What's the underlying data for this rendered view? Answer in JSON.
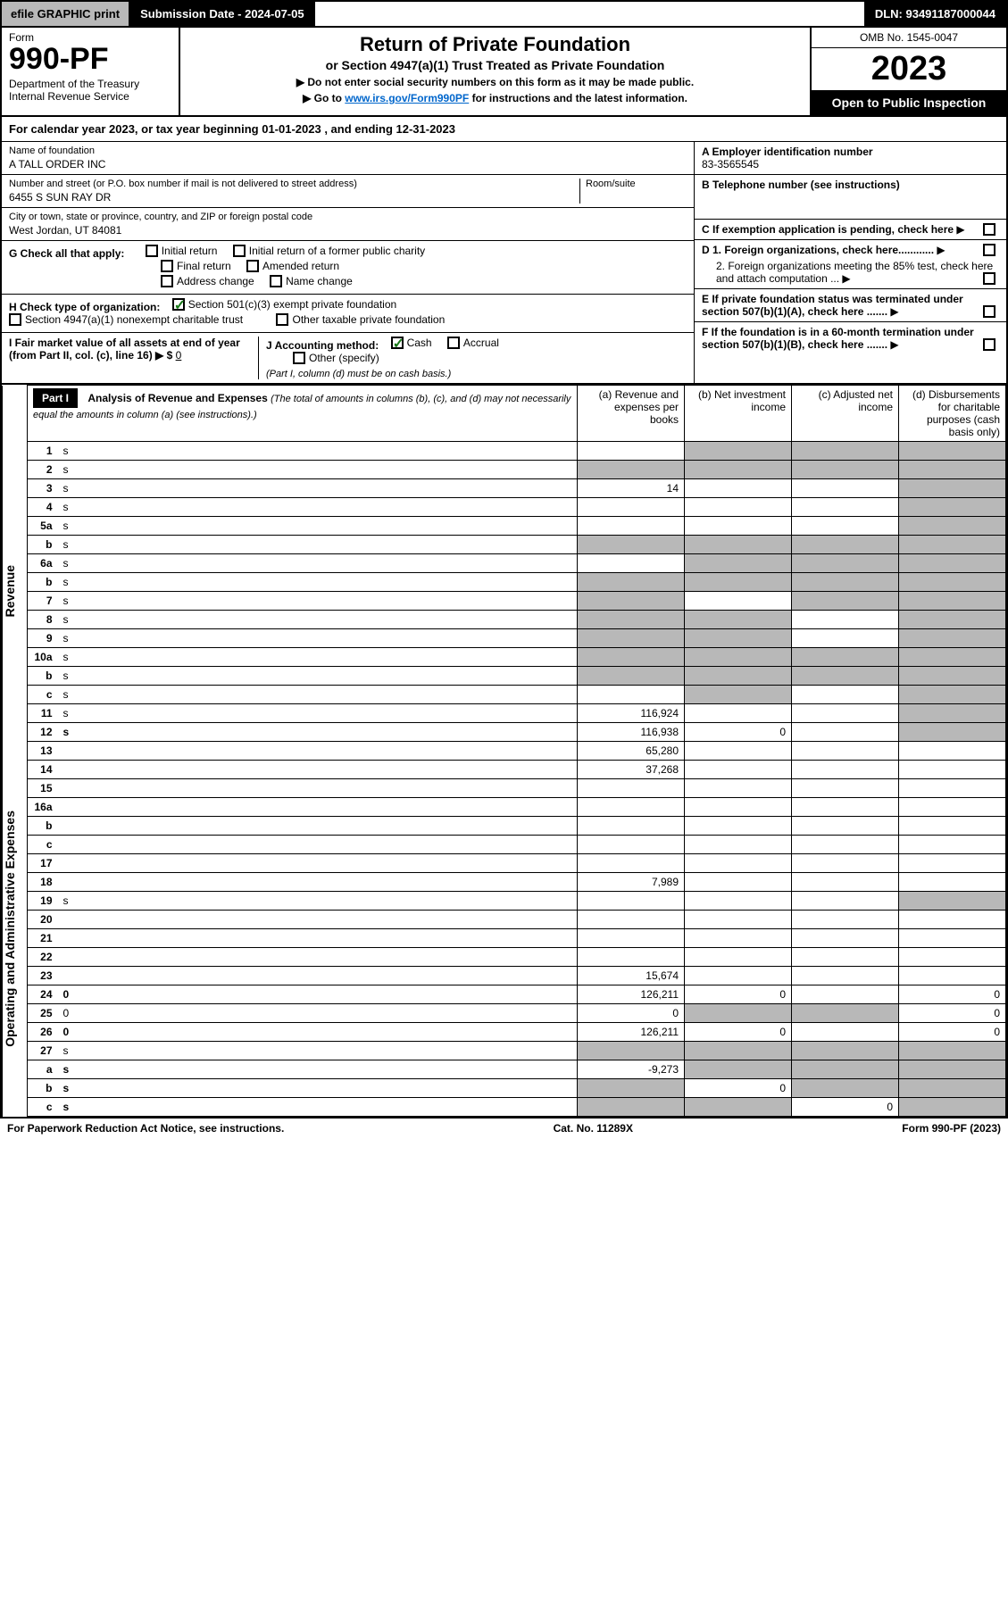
{
  "topbar": {
    "efile": "efile GRAPHIC print",
    "submission": "Submission Date - 2024-07-05",
    "dln": "DLN: 93491187000044"
  },
  "header": {
    "form_label": "Form",
    "form_number": "990-PF",
    "dept": "Department of the Treasury",
    "irs": "Internal Revenue Service",
    "title": "Return of Private Foundation",
    "subtitle": "or Section 4947(a)(1) Trust Treated as Private Foundation",
    "instr1": "▶ Do not enter social security numbers on this form as it may be made public.",
    "instr2_prefix": "▶ Go to ",
    "instr2_link": "www.irs.gov/Form990PF",
    "instr2_suffix": " for instructions and the latest information.",
    "omb": "OMB No. 1545-0047",
    "year": "2023",
    "open": "Open to Public Inspection"
  },
  "calyear": "For calendar year 2023, or tax year beginning 01-01-2023                          , and ending 12-31-2023",
  "info": {
    "name_label": "Name of foundation",
    "name": "A TALL ORDER INC",
    "addr_label": "Number and street (or P.O. box number if mail is not delivered to street address)",
    "addr": "6455 S SUN RAY DR",
    "room_label": "Room/suite",
    "city_label": "City or town, state or province, country, and ZIP or foreign postal code",
    "city": "West Jordan, UT  84081",
    "a_label": "A Employer identification number",
    "a_val": "83-3565545",
    "b_label": "B Telephone number (see instructions)",
    "c_label": "C If exemption application is pending, check here",
    "d1": "D 1. Foreign organizations, check here............",
    "d2": "2. Foreign organizations meeting the 85% test, check here and attach computation ...",
    "e": "E  If private foundation status was terminated under section 507(b)(1)(A), check here .......",
    "f": "F  If the foundation is in a 60-month termination under section 507(b)(1)(B), check here .......",
    "g": "G Check all that apply:",
    "g_opts": [
      "Initial return",
      "Initial return of a former public charity",
      "Final return",
      "Amended return",
      "Address change",
      "Name change"
    ],
    "h": "H Check type of organization:",
    "h1": "Section 501(c)(3) exempt private foundation",
    "h2": "Section 4947(a)(1) nonexempt charitable trust",
    "h3": "Other taxable private foundation",
    "i": "I Fair market value of all assets at end of year (from Part II, col. (c), line 16) ▶ $",
    "i_val": "0",
    "j": "J Accounting method:",
    "j_cash": "Cash",
    "j_accrual": "Accrual",
    "j_other": "Other (specify)",
    "j_note": "(Part I, column (d) must be on cash basis.)"
  },
  "part1": {
    "label": "Part I",
    "title": "Analysis of Revenue and Expenses",
    "title_note": "(The total of amounts in columns (b), (c), and (d) may not necessarily equal the amounts in column (a) (see instructions).)",
    "col_a": "(a) Revenue and expenses per books",
    "col_b": "(b) Net investment income",
    "col_c": "(c) Adjusted net income",
    "col_d": "(d) Disbursements for charitable purposes (cash basis only)"
  },
  "vlabels": {
    "revenue": "Revenue",
    "expenses": "Operating and Administrative Expenses"
  },
  "rows": [
    {
      "n": "1",
      "d": "s",
      "a": "",
      "b": "s",
      "c": "s"
    },
    {
      "n": "2",
      "d": "s",
      "a": "s",
      "b": "s",
      "c": "s"
    },
    {
      "n": "3",
      "d": "s",
      "a": "14",
      "b": "",
      "c": ""
    },
    {
      "n": "4",
      "d": "s",
      "a": "",
      "b": "",
      "c": ""
    },
    {
      "n": "5a",
      "d": "s",
      "a": "",
      "b": "",
      "c": ""
    },
    {
      "n": "b",
      "d": "s",
      "a": "s",
      "b": "s",
      "c": "s"
    },
    {
      "n": "6a",
      "d": "s",
      "a": "",
      "b": "s",
      "c": "s"
    },
    {
      "n": "b",
      "d": "s",
      "a": "s",
      "b": "s",
      "c": "s"
    },
    {
      "n": "7",
      "d": "s",
      "a": "s",
      "b": "",
      "c": "s"
    },
    {
      "n": "8",
      "d": "s",
      "a": "s",
      "b": "s",
      "c": ""
    },
    {
      "n": "9",
      "d": "s",
      "a": "s",
      "b": "s",
      "c": ""
    },
    {
      "n": "10a",
      "d": "s",
      "a": "s",
      "b": "s",
      "c": "s"
    },
    {
      "n": "b",
      "d": "s",
      "a": "s",
      "b": "s",
      "c": "s"
    },
    {
      "n": "c",
      "d": "s",
      "a": "",
      "b": "s",
      "c": ""
    },
    {
      "n": "11",
      "d": "s",
      "a": "116,924",
      "b": "",
      "c": ""
    },
    {
      "n": "12",
      "d": "s",
      "a": "116,938",
      "b": "0",
      "c": "",
      "bold": true
    },
    {
      "n": "13",
      "d": "",
      "a": "65,280",
      "b": "",
      "c": ""
    },
    {
      "n": "14",
      "d": "",
      "a": "37,268",
      "b": "",
      "c": ""
    },
    {
      "n": "15",
      "d": "",
      "a": "",
      "b": "",
      "c": ""
    },
    {
      "n": "16a",
      "d": "",
      "a": "",
      "b": "",
      "c": ""
    },
    {
      "n": "b",
      "d": "",
      "a": "",
      "b": "",
      "c": ""
    },
    {
      "n": "c",
      "d": "",
      "a": "",
      "b": "",
      "c": ""
    },
    {
      "n": "17",
      "d": "",
      "a": "",
      "b": "",
      "c": ""
    },
    {
      "n": "18",
      "d": "",
      "a": "7,989",
      "b": "",
      "c": ""
    },
    {
      "n": "19",
      "d": "s",
      "a": "",
      "b": "",
      "c": ""
    },
    {
      "n": "20",
      "d": "",
      "a": "",
      "b": "",
      "c": ""
    },
    {
      "n": "21",
      "d": "",
      "a": "",
      "b": "",
      "c": ""
    },
    {
      "n": "22",
      "d": "",
      "a": "",
      "b": "",
      "c": ""
    },
    {
      "n": "23",
      "d": "",
      "a": "15,674",
      "b": "",
      "c": ""
    },
    {
      "n": "24",
      "d": "0",
      "a": "126,211",
      "b": "0",
      "c": "",
      "bold": true
    },
    {
      "n": "25",
      "d": "0",
      "a": "0",
      "b": "s",
      "c": "s"
    },
    {
      "n": "26",
      "d": "0",
      "a": "126,211",
      "b": "0",
      "c": "",
      "bold": true
    },
    {
      "n": "27",
      "d": "s",
      "a": "s",
      "b": "s",
      "c": "s"
    },
    {
      "n": "a",
      "d": "s",
      "a": "-9,273",
      "b": "s",
      "c": "s",
      "bold": true
    },
    {
      "n": "b",
      "d": "s",
      "a": "s",
      "b": "0",
      "c": "s",
      "bold": true
    },
    {
      "n": "c",
      "d": "s",
      "a": "s",
      "b": "s",
      "c": "0",
      "bold": true
    }
  ],
  "footer": {
    "left": "For Paperwork Reduction Act Notice, see instructions.",
    "center": "Cat. No. 11289X",
    "right": "Form 990-PF (2023)"
  }
}
